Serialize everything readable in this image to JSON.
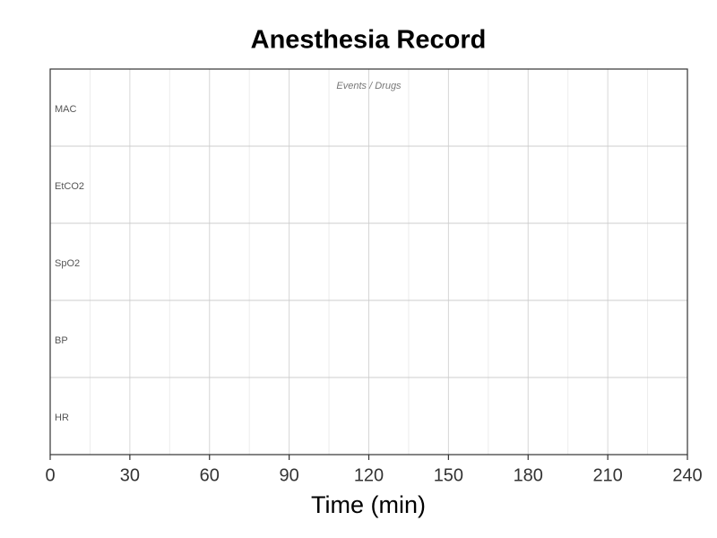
{
  "chart_data": {
    "type": "record",
    "title": "Anesthesia Record",
    "xlabel": "Time (min)",
    "annotation": "Events / Drugs",
    "lanes": [
      "MAC",
      "EtCO2",
      "SpO2",
      "BP",
      "HR"
    ],
    "xlim": [
      0,
      240
    ],
    "xticks": [
      0,
      30,
      60,
      90,
      120,
      150,
      180,
      210,
      240
    ],
    "xminorticks": [
      15,
      45,
      75,
      105,
      135,
      165,
      195,
      225
    ],
    "grid": true
  }
}
